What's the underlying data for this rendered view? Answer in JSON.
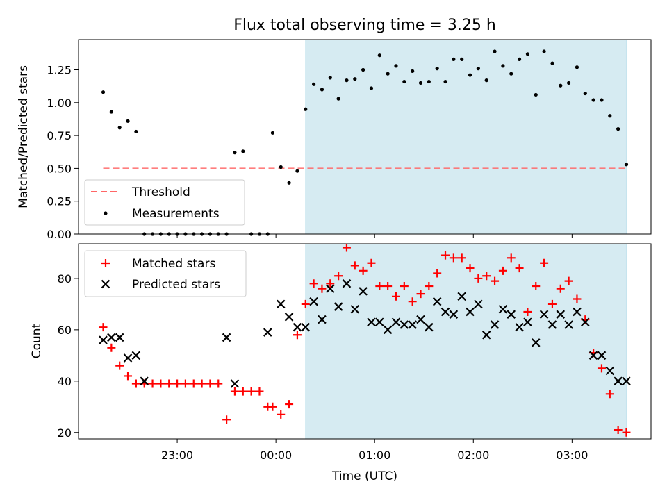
{
  "colors": {
    "span": "#add8e6",
    "threshold": "#ff6666",
    "measurement": "#000000",
    "matched": "#ff0000",
    "predicted": "#000000"
  },
  "chart_data": [
    {
      "type": "scatter",
      "title": "Flux total observing time = 3.25 h",
      "ylabel": "Matched/Predicted stars",
      "xlim": [
        "22:00",
        "03:48"
      ],
      "ylim": [
        0,
        1.48
      ],
      "yticks": [
        "0.00",
        "0.25",
        "0.50",
        "0.75",
        "1.00",
        "1.25"
      ],
      "shaded_span": [
        "00:18",
        "03:33"
      ],
      "threshold": 0.5,
      "legend_position": "lower-left",
      "legend": [
        {
          "label": "Threshold",
          "marker": "dashed-line"
        },
        {
          "label": "Measurements",
          "marker": "dot"
        }
      ],
      "series": [
        {
          "name": "Measurements",
          "x": [
            "22:15",
            "22:20",
            "22:25",
            "22:30",
            "22:35",
            "22:40",
            "22:45",
            "22:50",
            "22:55",
            "23:00",
            "23:05",
            "23:10",
            "23:15",
            "23:20",
            "23:25",
            "23:30",
            "23:35",
            "23:40",
            "23:45",
            "23:50",
            "23:55",
            "23:58",
            "00:03",
            "00:08",
            "00:13",
            "00:18",
            "00:23",
            "00:28",
            "00:33",
            "00:38",
            "00:43",
            "00:48",
            "00:53",
            "00:58",
            "01:03",
            "01:08",
            "01:13",
            "01:18",
            "01:23",
            "01:28",
            "01:33",
            "01:38",
            "01:43",
            "01:48",
            "01:53",
            "01:58",
            "02:03",
            "02:08",
            "02:13",
            "02:18",
            "02:23",
            "02:28",
            "02:33",
            "02:38",
            "02:43",
            "02:48",
            "02:53",
            "02:58",
            "03:03",
            "03:08",
            "03:13",
            "03:18",
            "03:23",
            "03:28",
            "03:33"
          ],
          "y": [
            1.08,
            0.93,
            0.81,
            0.86,
            0.78,
            0,
            0,
            0,
            0,
            0,
            0,
            0,
            0,
            0,
            0,
            0,
            0.62,
            0.63,
            0,
            0,
            0,
            0.77,
            0.51,
            0.39,
            0.48,
            0.95,
            1.14,
            1.1,
            1.19,
            1.03,
            1.17,
            1.18,
            1.25,
            1.11,
            1.36,
            1.22,
            1.28,
            1.16,
            1.24,
            1.15,
            1.16,
            1.26,
            1.16,
            1.33,
            1.33,
            1.21,
            1.26,
            1.17,
            1.39,
            1.28,
            1.22,
            1.33,
            1.37,
            1.06,
            1.39,
            1.3,
            1.13,
            1.15,
            1.27,
            1.07,
            1.02,
            1.02,
            0.9,
            0.8,
            0.53
          ]
        }
      ]
    },
    {
      "type": "scatter",
      "xlabel": "Time (UTC)",
      "ylabel": "Count",
      "xlim": [
        "22:00",
        "03:48"
      ],
      "ylim": [
        17.5,
        93.5
      ],
      "xticks": [
        "23:00",
        "00:00",
        "01:00",
        "02:00",
        "03:00"
      ],
      "yticks": [
        "20",
        "40",
        "60",
        "80"
      ],
      "shaded_span": [
        "00:18",
        "03:33"
      ],
      "legend_position": "upper-left",
      "legend": [
        {
          "label": "Matched stars",
          "marker": "plus"
        },
        {
          "label": "Predicted stars",
          "marker": "x"
        }
      ],
      "series": [
        {
          "name": "Matched stars",
          "x": [
            "22:15",
            "22:20",
            "22:25",
            "22:30",
            "22:35",
            "22:40",
            "22:45",
            "22:50",
            "22:55",
            "23:00",
            "23:05",
            "23:10",
            "23:15",
            "23:20",
            "23:25",
            "23:30",
            "23:35",
            "23:40",
            "23:45",
            "23:50",
            "23:55",
            "23:58",
            "00:03",
            "00:08",
            "00:13",
            "00:18",
            "00:23",
            "00:28",
            "00:33",
            "00:38",
            "00:43",
            "00:48",
            "00:53",
            "00:58",
            "01:03",
            "01:08",
            "01:13",
            "01:18",
            "01:23",
            "01:28",
            "01:33",
            "01:38",
            "01:43",
            "01:48",
            "01:53",
            "01:58",
            "02:03",
            "02:08",
            "02:13",
            "02:18",
            "02:23",
            "02:28",
            "02:33",
            "02:38",
            "02:43",
            "02:48",
            "02:53",
            "02:58",
            "03:03",
            "03:08",
            "03:13",
            "03:18",
            "03:23",
            "03:28",
            "03:33"
          ],
          "y": [
            61,
            53,
            46,
            42,
            39,
            39,
            39,
            39,
            39,
            39,
            39,
            39,
            39,
            39,
            39,
            25,
            36,
            36,
            36,
            36,
            30,
            30,
            27,
            31,
            58,
            70,
            78,
            76,
            78,
            81,
            92,
            85,
            83,
            86,
            77,
            77,
            73,
            77,
            71,
            74,
            77,
            82,
            89,
            88,
            88,
            84,
            80,
            81,
            79,
            83,
            88,
            84,
            67,
            77,
            86,
            70,
            76,
            79,
            72,
            64,
            51,
            45,
            35,
            21,
            20
          ]
        },
        {
          "name": "Predicted stars",
          "x": [
            "22:15",
            "22:20",
            "22:25",
            "22:30",
            "22:35",
            "22:40",
            "23:30",
            "23:35",
            "23:55",
            "00:03",
            "00:08",
            "00:13",
            "00:18",
            "00:23",
            "00:28",
            "00:33",
            "00:38",
            "00:43",
            "00:48",
            "00:53",
            "00:58",
            "01:03",
            "01:08",
            "01:13",
            "01:18",
            "01:23",
            "01:28",
            "01:33",
            "01:38",
            "01:43",
            "01:48",
            "01:53",
            "01:58",
            "02:03",
            "02:08",
            "02:13",
            "02:18",
            "02:23",
            "02:28",
            "02:33",
            "02:38",
            "02:43",
            "02:48",
            "02:53",
            "02:58",
            "03:03",
            "03:08",
            "03:13",
            "03:18",
            "03:23",
            "03:28",
            "03:33"
          ],
          "y": [
            56,
            57,
            57,
            49,
            50,
            40,
            57,
            39,
            59,
            70,
            65,
            61,
            61,
            71,
            64,
            76,
            69,
            78,
            68,
            75,
            63,
            63,
            60,
            63,
            62,
            62,
            64,
            61,
            71,
            67,
            66,
            73,
            67,
            70,
            58,
            62,
            68,
            66,
            61,
            63,
            55,
            66,
            62,
            66,
            62,
            67,
            63,
            50,
            50,
            44,
            40,
            40
          ]
        }
      ]
    }
  ]
}
